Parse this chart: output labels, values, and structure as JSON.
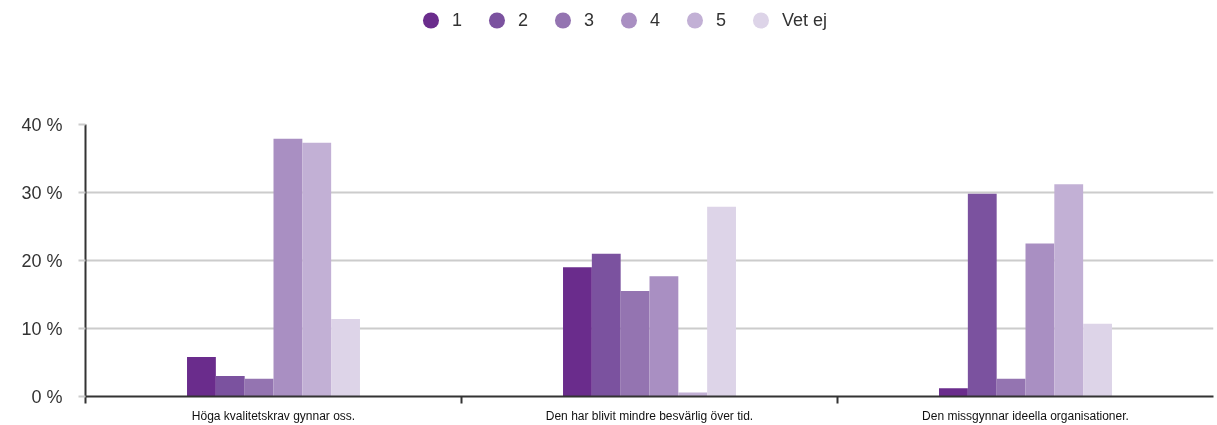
{
  "chart_data": {
    "type": "bar",
    "categories": [
      "Höga kvalitetskrav gynnar oss.",
      "Den har blivit mindre besvärlig över tid.",
      "Den missgynnar ideella organisationer."
    ],
    "series": [
      {
        "name": "1",
        "color": "#6a2c8c",
        "values": [
          5.8,
          19.0,
          1.2
        ]
      },
      {
        "name": "2",
        "color": "#7b529f",
        "values": [
          3.0,
          21.0,
          29.8
        ]
      },
      {
        "name": "3",
        "color": "#9474b1",
        "values": [
          2.6,
          15.5,
          2.6
        ]
      },
      {
        "name": "4",
        "color": "#a98fc2",
        "values": [
          37.9,
          17.7,
          22.5
        ]
      },
      {
        "name": "5",
        "color": "#c2b0d5",
        "values": [
          37.3,
          0.6,
          31.2
        ]
      },
      {
        "name": "Vet ej",
        "color": "#ddd4e8",
        "values": [
          11.4,
          27.9,
          10.7
        ]
      }
    ],
    "ylim": [
      0,
      40
    ],
    "yticks": [
      {
        "value": 0,
        "label": "0 %"
      },
      {
        "value": 10,
        "label": "10 %"
      },
      {
        "value": 20,
        "label": "20 %"
      },
      {
        "value": 30,
        "label": "30 %"
      },
      {
        "value": 40,
        "label": "40 %"
      }
    ],
    "grid": "y",
    "legend": "top"
  }
}
